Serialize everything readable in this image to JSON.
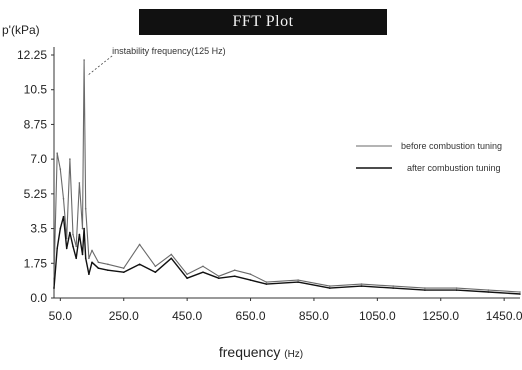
{
  "chart_data": {
    "type": "line",
    "title": "FFT Plot",
    "ylabel": "p'(kPa)",
    "xlabel": "frequency",
    "xlabel_unit": "(Hz)",
    "xlim": [
      30,
      1500
    ],
    "ylim": [
      0,
      12.25
    ],
    "x_ticks": [
      50,
      250,
      450,
      650,
      850,
      1050,
      1250,
      1450
    ],
    "x_tick_labels": [
      "50.0",
      "250.0",
      "450.0",
      "650.0",
      "850.0",
      "1050.0",
      "1250.0",
      "1450.0"
    ],
    "y_ticks": [
      0,
      1.75,
      3.5,
      5.25,
      7.0,
      8.75,
      10.5,
      12.25
    ],
    "y_tick_labels": [
      "0.0",
      "1.75",
      "3.5",
      "5.25",
      "7.0",
      "8.75",
      "10.5",
      "12.25"
    ],
    "grid": false,
    "legend_position": "right",
    "annotation": {
      "text": "instability frequency(125 Hz)",
      "x": 125,
      "y": 11.5
    },
    "series": [
      {
        "name": "before combustion tuning",
        "color": "#6a6a6a",
        "x": [
          30,
          40,
          50,
          60,
          70,
          80,
          90,
          100,
          110,
          120,
          125,
          130,
          140,
          150,
          170,
          200,
          250,
          300,
          350,
          400,
          450,
          500,
          550,
          600,
          650,
          700,
          800,
          900,
          1000,
          1100,
          1200,
          1300,
          1400,
          1500
        ],
        "y": [
          1.0,
          7.3,
          6.5,
          5.0,
          3.0,
          7.0,
          3.2,
          2.6,
          5.8,
          3.5,
          12.0,
          4.5,
          2.0,
          2.4,
          1.8,
          1.7,
          1.5,
          2.7,
          1.6,
          2.2,
          1.2,
          1.6,
          1.1,
          1.4,
          1.2,
          0.8,
          0.9,
          0.6,
          0.7,
          0.6,
          0.5,
          0.5,
          0.4,
          0.3
        ]
      },
      {
        "name": "after combustion tuning",
        "color": "#111111",
        "x": [
          30,
          40,
          50,
          60,
          70,
          80,
          90,
          100,
          110,
          120,
          125,
          130,
          140,
          150,
          170,
          200,
          250,
          300,
          350,
          400,
          450,
          500,
          550,
          600,
          650,
          700,
          800,
          900,
          1000,
          1100,
          1200,
          1300,
          1400,
          1500
        ],
        "y": [
          0.5,
          2.5,
          3.5,
          4.1,
          2.5,
          3.3,
          2.6,
          2.0,
          3.2,
          2.2,
          3.5,
          2.0,
          1.2,
          1.8,
          1.5,
          1.4,
          1.3,
          1.7,
          1.3,
          2.0,
          1.0,
          1.3,
          1.0,
          1.1,
          0.9,
          0.7,
          0.8,
          0.5,
          0.6,
          0.5,
          0.4,
          0.4,
          0.3,
          0.2
        ]
      }
    ]
  }
}
